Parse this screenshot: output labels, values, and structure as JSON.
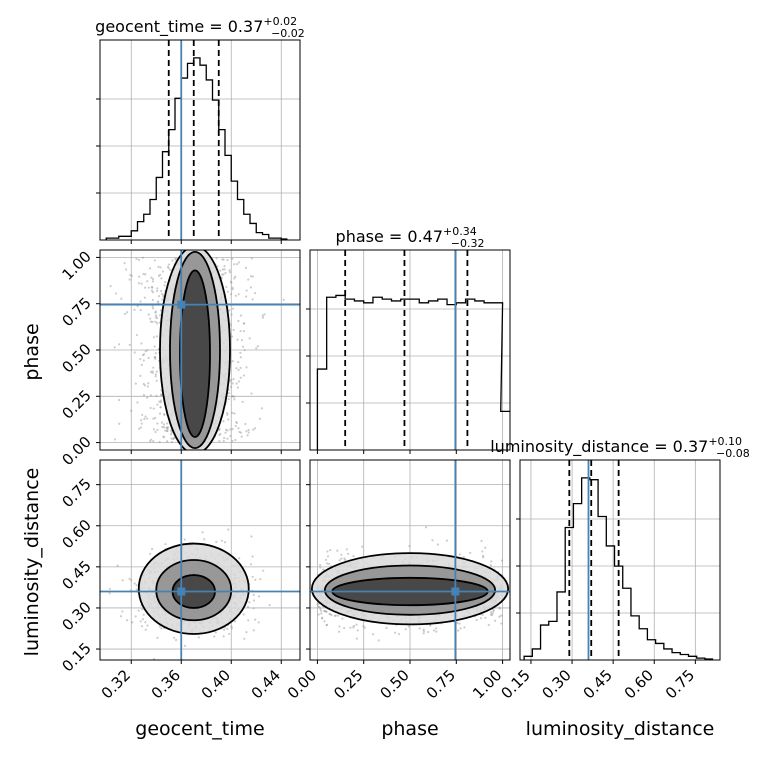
{
  "chart_data": {
    "type": "corner",
    "parameters": [
      "geocent_time",
      "phase",
      "luminosity_distance"
    ],
    "colors": {
      "truth": "#4682b4",
      "hist": "#000000",
      "grid": "#b0b0b0",
      "points": "#9a9a9a"
    },
    "truths": {
      "geocent_time": 0.36,
      "phase": 0.745,
      "luminosity_distance": 0.36
    },
    "ranges": {
      "geocent_time": [
        0.295,
        0.455
      ],
      "phase": [
        -0.04,
        1.04
      ],
      "luminosity_distance": [
        0.11,
        0.84
      ]
    },
    "ticks": {
      "geocent_time": [
        {
          "v": 0.32,
          "label": "0.32"
        },
        {
          "v": 0.36,
          "label": "0.36"
        },
        {
          "v": 0.4,
          "label": "0.40"
        },
        {
          "v": 0.44,
          "label": "0.44"
        }
      ],
      "phase": [
        {
          "v": 0.0,
          "label": "0.00"
        },
        {
          "v": 0.25,
          "label": "0.25"
        },
        {
          "v": 0.5,
          "label": "0.50"
        },
        {
          "v": 0.75,
          "label": "0.75"
        },
        {
          "v": 1.0,
          "label": "1.00"
        }
      ],
      "luminosity_distance": [
        {
          "v": 0.15,
          "label": "0.15"
        },
        {
          "v": 0.3,
          "label": "0.30"
        },
        {
          "v": 0.45,
          "label": "0.45"
        },
        {
          "v": 0.6,
          "label": "0.60"
        },
        {
          "v": 0.75,
          "label": "0.75"
        }
      ]
    },
    "diag_titles": [
      {
        "param": "geocent_time",
        "prefix": "geocent_time = 0.37",
        "sup": "+0.02",
        "sub": "−0.02"
      },
      {
        "param": "phase",
        "prefix": "phase = 0.47",
        "sup": "+0.34",
        "sub": "−0.32"
      },
      {
        "param": "luminosity_distance",
        "prefix": "luminosity_distance = 0.37",
        "sup": "+0.10",
        "sub": "−0.08"
      }
    ],
    "quantiles": {
      "geocent_time": [
        0.35,
        0.37,
        0.39
      ],
      "phase": [
        0.15,
        0.47,
        0.81
      ],
      "luminosity_distance": [
        0.29,
        0.37,
        0.47
      ]
    },
    "hist1d": {
      "geocent_time": {
        "x": [
          0.3025,
          0.3075,
          0.3125,
          0.3175,
          0.3225,
          0.3275,
          0.3325,
          0.3375,
          0.3425,
          0.3475,
          0.3525,
          0.3575,
          0.3625,
          0.3675,
          0.3725,
          0.3775,
          0.3825,
          0.3875,
          0.3925,
          0.3975,
          0.4025,
          0.4075,
          0.4125,
          0.4175,
          0.4225,
          0.4275,
          0.4325,
          0.4375,
          0.4425
        ],
        "y": [
          0.01,
          0.01,
          0.02,
          0.02,
          0.05,
          0.1,
          0.14,
          0.22,
          0.34,
          0.48,
          0.6,
          0.77,
          0.88,
          0.96,
          0.99,
          0.95,
          0.87,
          0.76,
          0.6,
          0.46,
          0.32,
          0.22,
          0.14,
          0.09,
          0.04,
          0.03,
          0.01,
          0.01,
          0.005
        ]
      },
      "phase": {
        "x": [
          0.025,
          0.075,
          0.125,
          0.175,
          0.225,
          0.275,
          0.325,
          0.375,
          0.425,
          0.475,
          0.525,
          0.575,
          0.625,
          0.675,
          0.725,
          0.775,
          0.825,
          0.875,
          0.925,
          0.975,
          1.015
        ],
        "y": [
          0.44,
          0.83,
          0.84,
          0.82,
          0.81,
          0.8,
          0.83,
          0.82,
          0.81,
          0.82,
          0.82,
          0.8,
          0.81,
          0.82,
          0.79,
          0.8,
          0.82,
          0.81,
          0.8,
          0.8,
          0.21
        ]
      },
      "luminosity_distance": {
        "x": [
          0.14,
          0.17,
          0.2,
          0.23,
          0.26,
          0.29,
          0.32,
          0.35,
          0.38,
          0.41,
          0.44,
          0.47,
          0.5,
          0.53,
          0.56,
          0.59,
          0.62,
          0.65,
          0.68,
          0.71,
          0.74,
          0.77,
          0.8
        ],
        "y": [
          0.02,
          0.06,
          0.19,
          0.21,
          0.37,
          0.72,
          0.85,
          0.99,
          0.98,
          0.78,
          0.62,
          0.51,
          0.39,
          0.24,
          0.17,
          0.11,
          0.09,
          0.06,
          0.04,
          0.03,
          0.02,
          0.01,
          0.005
        ]
      }
    },
    "scatter": {
      "phase_vs_geocent_time": {
        "mean": [
          0.37,
          0.5
        ],
        "sd": [
          0.02,
          0.3
        ],
        "n": 1400
      },
      "luminosity_distance_vs_geocent_time": {
        "mean": [
          0.37,
          0.36
        ],
        "sd": [
          0.02,
          0.07
        ],
        "n": 1200
      },
      "luminosity_distance_vs_phase": {
        "mean": [
          0.5,
          0.36
        ],
        "sd": [
          0.3,
          0.06
        ],
        "n": 1300
      }
    },
    "contours": {
      "phase_vs_geocent_time": [
        {
          "cx": 0.371,
          "cy": 0.5,
          "rx": 0.028,
          "ry": 0.56
        },
        {
          "cx": 0.371,
          "cy": 0.5,
          "rx": 0.02,
          "ry": 0.53
        },
        {
          "cx": 0.371,
          "cy": 0.48,
          "rx": 0.012,
          "ry": 0.45
        }
      ],
      "luminosity_distance_vs_geocent_time": [
        {
          "cx": 0.37,
          "cy": 0.37,
          "rx": 0.044,
          "ry": 0.165
        },
        {
          "cx": 0.37,
          "cy": 0.365,
          "rx": 0.03,
          "ry": 0.11
        },
        {
          "cx": 0.37,
          "cy": 0.36,
          "rx": 0.017,
          "ry": 0.06
        }
      ],
      "luminosity_distance_vs_phase": [
        {
          "cx": 0.5,
          "cy": 0.37,
          "rx": 0.53,
          "ry": 0.13
        },
        {
          "cx": 0.5,
          "cy": 0.365,
          "rx": 0.46,
          "ry": 0.09
        },
        {
          "cx": 0.5,
          "cy": 0.36,
          "rx": 0.42,
          "ry": 0.05
        }
      ]
    },
    "axis_labels": {
      "x": [
        "geocent_time",
        "phase",
        "luminosity_distance"
      ],
      "y": [
        "phase",
        "luminosity_distance"
      ]
    },
    "grid": true
  }
}
